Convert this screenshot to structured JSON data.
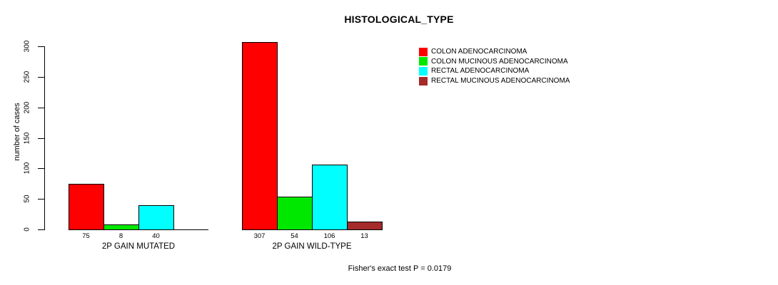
{
  "title": "HISTOLOGICAL_TYPE",
  "chart_data": {
    "type": "bar",
    "title": "HISTOLOGICAL_TYPE",
    "xlabel": "",
    "ylabel": "number of cases",
    "ylim": [
      0,
      300
    ],
    "yticks": [
      0,
      50,
      100,
      150,
      200,
      250,
      300
    ],
    "grid": false,
    "legend_position": "top-right",
    "categories": [
      "2P GAIN MUTATED",
      "2P GAIN WILD-TYPE"
    ],
    "series": [
      {
        "name": "COLON ADENOCARCINOMA",
        "color": "#FF0000",
        "values": [
          75,
          307
        ]
      },
      {
        "name": "COLON MUCINOUS ADENOCARCINOMA",
        "color": "#00E800",
        "values": [
          8,
          54
        ]
      },
      {
        "name": "RECTAL ADENOCARCINOMA",
        "color": "#00FFFF",
        "values": [
          40,
          106
        ]
      },
      {
        "name": "RECTAL MUCINOUS ADENOCARCINOMA",
        "color": "#A52A2A",
        "values": [
          0,
          13
        ]
      }
    ],
    "groups": [
      {
        "label": "2P GAIN MUTATED",
        "values": [
          75,
          8,
          40,
          0
        ],
        "bar_labels": [
          "75",
          "8",
          "40",
          ""
        ]
      },
      {
        "label": "2P GAIN WILD-TYPE",
        "values": [
          307,
          54,
          106,
          13
        ],
        "bar_labels": [
          "307",
          "54",
          "106",
          "13"
        ]
      }
    ],
    "annotation": "Fisher's exact test P = 0.0179"
  }
}
